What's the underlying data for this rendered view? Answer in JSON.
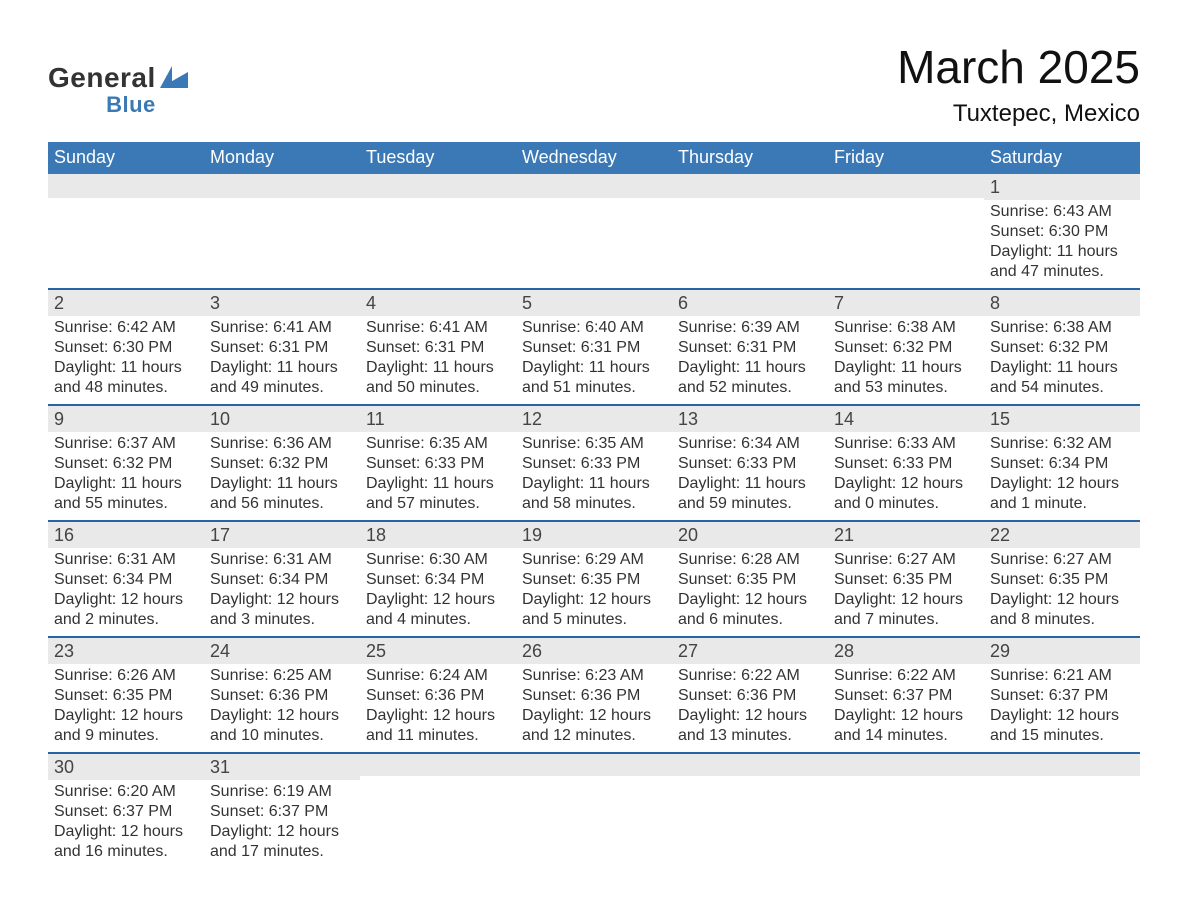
{
  "logo": {
    "top": "General",
    "bottom": "Blue"
  },
  "colors": {
    "header_blue": "#3b78b6",
    "row_border": "#2863a3",
    "header_gray": "#e9e9e9",
    "background": "#ffffff"
  },
  "title": {
    "month": "March 2025",
    "location": "Tuxtepec, Mexico"
  },
  "weekdays": [
    "Sunday",
    "Monday",
    "Tuesday",
    "Wednesday",
    "Thursday",
    "Friday",
    "Saturday"
  ],
  "weeks": [
    [
      null,
      null,
      null,
      null,
      null,
      null,
      {
        "day": "1",
        "sunrise": "Sunrise: 6:43 AM",
        "sunset": "Sunset: 6:30 PM",
        "daylight1": "Daylight: 11 hours",
        "daylight2": "and 47 minutes."
      }
    ],
    [
      {
        "day": "2",
        "sunrise": "Sunrise: 6:42 AM",
        "sunset": "Sunset: 6:30 PM",
        "daylight1": "Daylight: 11 hours",
        "daylight2": "and 48 minutes."
      },
      {
        "day": "3",
        "sunrise": "Sunrise: 6:41 AM",
        "sunset": "Sunset: 6:31 PM",
        "daylight1": "Daylight: 11 hours",
        "daylight2": "and 49 minutes."
      },
      {
        "day": "4",
        "sunrise": "Sunrise: 6:41 AM",
        "sunset": "Sunset: 6:31 PM",
        "daylight1": "Daylight: 11 hours",
        "daylight2": "and 50 minutes."
      },
      {
        "day": "5",
        "sunrise": "Sunrise: 6:40 AM",
        "sunset": "Sunset: 6:31 PM",
        "daylight1": "Daylight: 11 hours",
        "daylight2": "and 51 minutes."
      },
      {
        "day": "6",
        "sunrise": "Sunrise: 6:39 AM",
        "sunset": "Sunset: 6:31 PM",
        "daylight1": "Daylight: 11 hours",
        "daylight2": "and 52 minutes."
      },
      {
        "day": "7",
        "sunrise": "Sunrise: 6:38 AM",
        "sunset": "Sunset: 6:32 PM",
        "daylight1": "Daylight: 11 hours",
        "daylight2": "and 53 minutes."
      },
      {
        "day": "8",
        "sunrise": "Sunrise: 6:38 AM",
        "sunset": "Sunset: 6:32 PM",
        "daylight1": "Daylight: 11 hours",
        "daylight2": "and 54 minutes."
      }
    ],
    [
      {
        "day": "9",
        "sunrise": "Sunrise: 6:37 AM",
        "sunset": "Sunset: 6:32 PM",
        "daylight1": "Daylight: 11 hours",
        "daylight2": "and 55 minutes."
      },
      {
        "day": "10",
        "sunrise": "Sunrise: 6:36 AM",
        "sunset": "Sunset: 6:32 PM",
        "daylight1": "Daylight: 11 hours",
        "daylight2": "and 56 minutes."
      },
      {
        "day": "11",
        "sunrise": "Sunrise: 6:35 AM",
        "sunset": "Sunset: 6:33 PM",
        "daylight1": "Daylight: 11 hours",
        "daylight2": "and 57 minutes."
      },
      {
        "day": "12",
        "sunrise": "Sunrise: 6:35 AM",
        "sunset": "Sunset: 6:33 PM",
        "daylight1": "Daylight: 11 hours",
        "daylight2": "and 58 minutes."
      },
      {
        "day": "13",
        "sunrise": "Sunrise: 6:34 AM",
        "sunset": "Sunset: 6:33 PM",
        "daylight1": "Daylight: 11 hours",
        "daylight2": "and 59 minutes."
      },
      {
        "day": "14",
        "sunrise": "Sunrise: 6:33 AM",
        "sunset": "Sunset: 6:33 PM",
        "daylight1": "Daylight: 12 hours",
        "daylight2": "and 0 minutes."
      },
      {
        "day": "15",
        "sunrise": "Sunrise: 6:32 AM",
        "sunset": "Sunset: 6:34 PM",
        "daylight1": "Daylight: 12 hours",
        "daylight2": "and 1 minute."
      }
    ],
    [
      {
        "day": "16",
        "sunrise": "Sunrise: 6:31 AM",
        "sunset": "Sunset: 6:34 PM",
        "daylight1": "Daylight: 12 hours",
        "daylight2": "and 2 minutes."
      },
      {
        "day": "17",
        "sunrise": "Sunrise: 6:31 AM",
        "sunset": "Sunset: 6:34 PM",
        "daylight1": "Daylight: 12 hours",
        "daylight2": "and 3 minutes."
      },
      {
        "day": "18",
        "sunrise": "Sunrise: 6:30 AM",
        "sunset": "Sunset: 6:34 PM",
        "daylight1": "Daylight: 12 hours",
        "daylight2": "and 4 minutes."
      },
      {
        "day": "19",
        "sunrise": "Sunrise: 6:29 AM",
        "sunset": "Sunset: 6:35 PM",
        "daylight1": "Daylight: 12 hours",
        "daylight2": "and 5 minutes."
      },
      {
        "day": "20",
        "sunrise": "Sunrise: 6:28 AM",
        "sunset": "Sunset: 6:35 PM",
        "daylight1": "Daylight: 12 hours",
        "daylight2": "and 6 minutes."
      },
      {
        "day": "21",
        "sunrise": "Sunrise: 6:27 AM",
        "sunset": "Sunset: 6:35 PM",
        "daylight1": "Daylight: 12 hours",
        "daylight2": "and 7 minutes."
      },
      {
        "day": "22",
        "sunrise": "Sunrise: 6:27 AM",
        "sunset": "Sunset: 6:35 PM",
        "daylight1": "Daylight: 12 hours",
        "daylight2": "and 8 minutes."
      }
    ],
    [
      {
        "day": "23",
        "sunrise": "Sunrise: 6:26 AM",
        "sunset": "Sunset: 6:35 PM",
        "daylight1": "Daylight: 12 hours",
        "daylight2": "and 9 minutes."
      },
      {
        "day": "24",
        "sunrise": "Sunrise: 6:25 AM",
        "sunset": "Sunset: 6:36 PM",
        "daylight1": "Daylight: 12 hours",
        "daylight2": "and 10 minutes."
      },
      {
        "day": "25",
        "sunrise": "Sunrise: 6:24 AM",
        "sunset": "Sunset: 6:36 PM",
        "daylight1": "Daylight: 12 hours",
        "daylight2": "and 11 minutes."
      },
      {
        "day": "26",
        "sunrise": "Sunrise: 6:23 AM",
        "sunset": "Sunset: 6:36 PM",
        "daylight1": "Daylight: 12 hours",
        "daylight2": "and 12 minutes."
      },
      {
        "day": "27",
        "sunrise": "Sunrise: 6:22 AM",
        "sunset": "Sunset: 6:36 PM",
        "daylight1": "Daylight: 12 hours",
        "daylight2": "and 13 minutes."
      },
      {
        "day": "28",
        "sunrise": "Sunrise: 6:22 AM",
        "sunset": "Sunset: 6:37 PM",
        "daylight1": "Daylight: 12 hours",
        "daylight2": "and 14 minutes."
      },
      {
        "day": "29",
        "sunrise": "Sunrise: 6:21 AM",
        "sunset": "Sunset: 6:37 PM",
        "daylight1": "Daylight: 12 hours",
        "daylight2": "and 15 minutes."
      }
    ],
    [
      {
        "day": "30",
        "sunrise": "Sunrise: 6:20 AM",
        "sunset": "Sunset: 6:37 PM",
        "daylight1": "Daylight: 12 hours",
        "daylight2": "and 16 minutes."
      },
      {
        "day": "31",
        "sunrise": "Sunrise: 6:19 AM",
        "sunset": "Sunset: 6:37 PM",
        "daylight1": "Daylight: 12 hours",
        "daylight2": "and 17 minutes."
      },
      null,
      null,
      null,
      null,
      null
    ]
  ]
}
